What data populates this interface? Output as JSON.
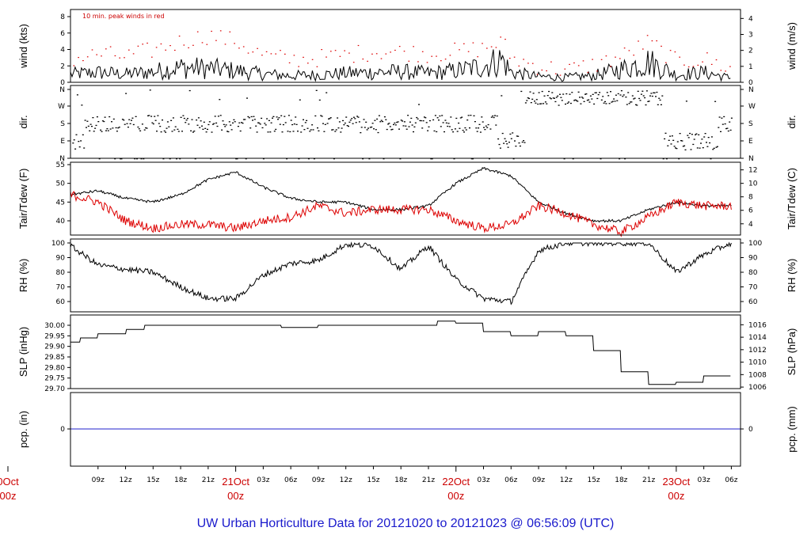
{
  "title": "UW Urban Horticulture Data for 20121020  to  20121023 @ 06:56:09  (UTC)",
  "colors": {
    "primary": "#000000",
    "secondary": "#dd0000",
    "precip": "#2222cc",
    "caption": "#1a1acc",
    "day_label": "#cc0000"
  },
  "x_hour_labels": [
    "09z",
    "12z",
    "15z",
    "18z",
    "21z",
    "03z",
    "06z",
    "09z",
    "12z",
    "15z",
    "18z",
    "21z",
    "03z",
    "06z",
    "09z",
    "12z",
    "15z",
    "18z",
    "21z",
    "03z",
    "06z"
  ],
  "x_day_labels": [
    {
      "date": "0Oct",
      "time": "00z"
    },
    {
      "date": "21Oct",
      "time": "00z"
    },
    {
      "date": "22Oct",
      "time": "00z"
    },
    {
      "date": "23Oct",
      "time": "00z"
    }
  ],
  "panels": {
    "wind": {
      "ylabel_left": "wind (kts)",
      "ylabel_right": "wind (m/s)",
      "note": "10 min. peak winds in red",
      "left_ticks": [
        "0",
        "2",
        "4",
        "6",
        "8"
      ],
      "right_ticks": [
        "0",
        "1",
        "2",
        "3",
        "4"
      ]
    },
    "dir": {
      "ylabel_left": "dir.",
      "ylabel_right": "dir.",
      "left_ticks": [
        "N",
        "E",
        "S",
        "W",
        "N"
      ],
      "right_ticks": [
        "N",
        "E",
        "S",
        "W",
        "N"
      ]
    },
    "temp": {
      "ylabel_left": "Tair/Tdew (F)",
      "ylabel_right": "Tair/Tdew (C)",
      "left_ticks": [
        "40",
        "45",
        "50",
        "55"
      ],
      "right_ticks": [
        "4",
        "6",
        "8",
        "10",
        "12"
      ]
    },
    "rh": {
      "ylabel_left": "RH (%)",
      "ylabel_right": "RH (%)",
      "left_ticks": [
        "60",
        "70",
        "80",
        "90",
        "100"
      ],
      "right_ticks": [
        "60",
        "70",
        "80",
        "90",
        "100"
      ]
    },
    "slp": {
      "ylabel_left": "SLP (inHg)",
      "ylabel_right": "SLP (hPa)",
      "left_ticks": [
        "29.70",
        "29.75",
        "29.80",
        "29.85",
        "29.90",
        "29.95",
        "30.00"
      ],
      "right_ticks": [
        "1006",
        "1008",
        "1010",
        "1012",
        "1014",
        "1016"
      ]
    },
    "pcp": {
      "ylabel_left": "pcp. (in)",
      "ylabel_right": "pcp. (mm)",
      "left_ticks": [
        "0"
      ],
      "right_ticks": [
        "0"
      ]
    }
  },
  "chart_data": [
    {
      "type": "line",
      "panel": "wind",
      "xlabel": "",
      "x_unit": "hours since 20121020 06z",
      "ylim": [
        0,
        8.5
      ],
      "y_unit": "kts",
      "x": [
        0,
        3,
        6,
        9,
        12,
        15,
        18,
        21,
        24,
        27,
        30,
        33,
        36,
        39,
        42,
        45,
        47,
        48,
        51,
        54,
        57,
        60,
        63,
        66,
        69,
        72
      ],
      "series": [
        {
          "name": "wind",
          "values": [
            1.0,
            1.2,
            1.0,
            1.3,
            1.8,
            1.7,
            1.4,
            1.0,
            0.8,
            0.9,
            1.1,
            1.2,
            1.3,
            1.1,
            1.4,
            2.0,
            2.8,
            1.2,
            0.7,
            0.6,
            0.8,
            1.6,
            2.5,
            0.9,
            1.2,
            0.5
          ]
        },
        {
          "name": "10 min. peak winds",
          "values": [
            2.8,
            3.5,
            3.2,
            4.0,
            5.0,
            5.8,
            5.0,
            3.3,
            2.8,
            3.0,
            3.4,
            3.8,
            3.8,
            3.5,
            3.8,
            4.2,
            5.0,
            3.0,
            2.0,
            1.5,
            2.2,
            3.2,
            5.0,
            2.5,
            2.9,
            1.6
          ]
        }
      ]
    },
    {
      "type": "scatter",
      "panel": "dir",
      "x_unit": "hours since 20121020 06z",
      "y_unit": "compass",
      "y_order": [
        "N",
        "E",
        "S",
        "W",
        "N"
      ],
      "x": [
        0,
        3,
        6,
        9,
        12,
        15,
        18,
        21,
        24,
        27,
        30,
        33,
        36,
        39,
        42,
        45,
        48,
        51,
        54,
        57,
        60,
        63,
        66,
        69,
        72
      ],
      "series": [
        {
          "name": "direction",
          "values": [
            "E",
            "S",
            "S",
            "S",
            "S",
            "S",
            "S",
            "S",
            "S",
            "S",
            "S",
            "S",
            "S",
            "S",
            "S",
            "S",
            "E",
            "W",
            "W",
            "W",
            "W",
            "W",
            "E",
            "E",
            "S"
          ]
        }
      ]
    },
    {
      "type": "line",
      "panel": "temp",
      "x_unit": "hours since 20121020 06z",
      "ylim": [
        36,
        55
      ],
      "y_unit": "F",
      "x": [
        0,
        3,
        6,
        9,
        12,
        15,
        18,
        21,
        24,
        27,
        30,
        33,
        36,
        39,
        42,
        45,
        48,
        51,
        54,
        57,
        60,
        63,
        66,
        69,
        72
      ],
      "series": [
        {
          "name": "Tair",
          "values": [
            47,
            48,
            46,
            45,
            47,
            51,
            53,
            49,
            46,
            45,
            45,
            43,
            43,
            44,
            50,
            54,
            52,
            45,
            42,
            40,
            40,
            43,
            45,
            44,
            44
          ]
        },
        {
          "name": "Tdew",
          "values": [
            47,
            45,
            40,
            38,
            39,
            39,
            38,
            40,
            41,
            44,
            42,
            43,
            43,
            43,
            40,
            38,
            39,
            44,
            42,
            39,
            37,
            41,
            45,
            44,
            44
          ]
        }
      ]
    },
    {
      "type": "line",
      "panel": "rh",
      "x_unit": "hours since 20121020 06z",
      "ylim": [
        55,
        100
      ],
      "y_unit": "%",
      "x": [
        0,
        3,
        6,
        9,
        12,
        15,
        18,
        21,
        24,
        27,
        30,
        33,
        36,
        39,
        42,
        45,
        48,
        51,
        54,
        57,
        60,
        63,
        66,
        69,
        72
      ],
      "series": [
        {
          "name": "RH",
          "values": [
            98,
            85,
            82,
            80,
            70,
            62,
            62,
            78,
            86,
            88,
            99,
            98,
            82,
            98,
            75,
            62,
            60,
            95,
            100,
            100,
            100,
            100,
            80,
            92,
            100
          ]
        }
      ]
    },
    {
      "type": "line",
      "panel": "slp",
      "x_unit": "hours since 20121020 06z",
      "ylim": [
        29.7,
        30.04
      ],
      "y_unit": "inHg",
      "x": [
        0,
        1,
        3,
        6,
        8,
        12,
        15,
        18,
        21,
        23,
        27,
        30,
        33,
        36,
        40,
        42,
        45,
        48,
        50,
        51,
        54,
        57,
        60,
        63,
        66,
        69,
        72
      ],
      "series": [
        {
          "name": "SLP",
          "values": [
            29.92,
            29.94,
            29.96,
            29.98,
            30.0,
            30.0,
            30.0,
            30.0,
            30.0,
            29.99,
            30.0,
            30.0,
            30.0,
            30.0,
            30.02,
            30.01,
            29.97,
            29.95,
            29.95,
            29.97,
            29.95,
            29.88,
            29.78,
            29.72,
            29.73,
            29.76,
            29.8
          ]
        }
      ]
    },
    {
      "type": "line",
      "panel": "pcp",
      "x_unit": "hours since 20121020 06z",
      "y_unit": "in",
      "x": [
        0,
        72
      ],
      "series": [
        {
          "name": "pcp",
          "values": [
            0,
            0
          ]
        }
      ]
    }
  ]
}
